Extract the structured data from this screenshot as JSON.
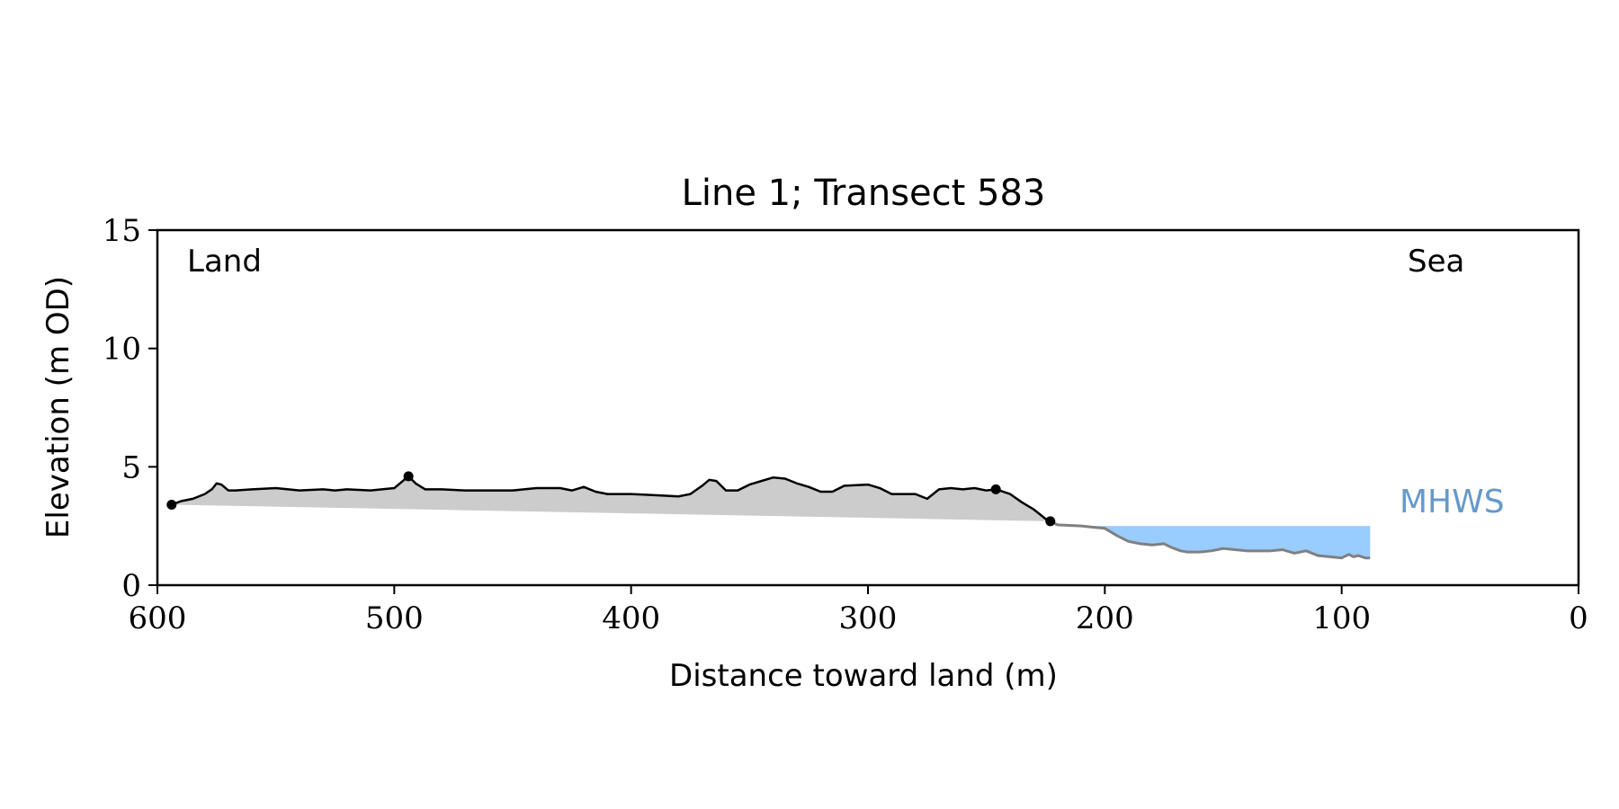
{
  "chart_data": {
    "type": "line",
    "title": "Line 1; Transect 583",
    "xlabel": "Distance toward land (m)",
    "ylabel": "Elevation (m OD)",
    "xlim": [
      600,
      0
    ],
    "ylim": [
      0,
      15
    ],
    "xticks": [
      600,
      500,
      400,
      300,
      200,
      100,
      0
    ],
    "yticks": [
      0,
      5,
      10,
      15
    ],
    "grid": false,
    "annotations": {
      "land": "Land",
      "sea": "Sea",
      "mhws": "MHWS"
    },
    "mhws_elevation": 2.5,
    "series": [
      {
        "x": [
          594,
          590,
          585,
          580,
          577,
          575,
          573,
          570,
          567,
          560,
          550,
          540,
          530,
          525,
          520,
          510,
          500,
          497,
          494,
          491,
          487,
          480,
          470,
          460,
          450,
          440,
          430,
          425,
          420,
          415,
          410,
          400,
          390,
          380,
          375,
          370,
          367,
          364,
          360,
          355,
          350,
          345,
          340,
          335,
          330,
          325,
          320,
          315,
          310,
          300,
          295,
          290,
          285,
          280,
          275,
          270,
          265,
          260,
          255,
          250,
          246,
          240,
          235,
          230,
          225,
          223
        ],
        "y": [
          3.4,
          3.55,
          3.65,
          3.85,
          4.05,
          4.3,
          4.25,
          4.0,
          4.0,
          4.05,
          4.1,
          4.0,
          4.05,
          4.0,
          4.05,
          4.0,
          4.1,
          4.35,
          4.6,
          4.3,
          4.05,
          4.05,
          4.0,
          4.0,
          4.0,
          4.1,
          4.1,
          4.0,
          4.15,
          3.95,
          3.85,
          3.85,
          3.8,
          3.75,
          3.85,
          4.2,
          4.45,
          4.4,
          4.0,
          4.0,
          4.25,
          4.4,
          4.55,
          4.5,
          4.3,
          4.15,
          3.95,
          3.95,
          4.2,
          4.25,
          4.1,
          3.85,
          3.85,
          3.85,
          3.65,
          4.05,
          4.1,
          4.05,
          4.1,
          4.0,
          4.05,
          3.85,
          3.5,
          3.2,
          2.8,
          2.7
        ]
      },
      {
        "x": [
          223,
          220,
          210,
          205,
          200,
          195,
          190,
          185,
          180,
          175,
          172,
          168,
          165,
          160,
          155,
          150,
          145,
          140,
          135,
          130,
          125,
          120,
          115,
          110,
          105,
          100,
          97,
          95,
          93,
          90,
          88
        ],
        "y": [
          2.7,
          2.55,
          2.5,
          2.45,
          2.4,
          2.1,
          1.85,
          1.75,
          1.7,
          1.75,
          1.6,
          1.45,
          1.4,
          1.4,
          1.45,
          1.55,
          1.5,
          1.45,
          1.45,
          1.45,
          1.5,
          1.35,
          1.45,
          1.25,
          1.2,
          1.15,
          1.3,
          1.2,
          1.25,
          1.15,
          1.15
        ]
      }
    ],
    "markers": [
      {
        "x": 594,
        "y": 3.4
      },
      {
        "x": 494,
        "y": 4.6
      },
      {
        "x": 246,
        "y": 4.05
      },
      {
        "x": 223,
        "y": 2.7
      }
    ],
    "colors": {
      "line": "#000000",
      "sea_line": "#808080",
      "land_fill": "#cccccc",
      "water_fill": "#99ccff",
      "mhws_text": "#6699cc"
    }
  }
}
